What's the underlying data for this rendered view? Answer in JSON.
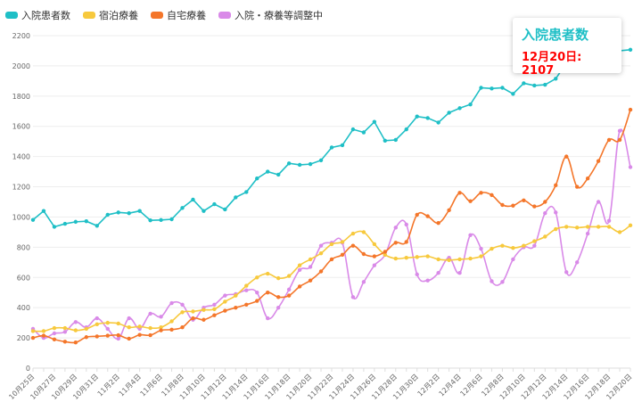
{
  "legend": [
    {
      "label": "入院患者数",
      "color": "#1fbfc6"
    },
    {
      "label": "宿泊療養",
      "color": "#f7c93d"
    },
    {
      "label": "自宅療養",
      "color": "#f4762a"
    },
    {
      "label": "入院・療養等調整中",
      "color": "#d98ae8"
    }
  ],
  "tooltip": {
    "title": "入院患者数",
    "date": "12月20日",
    "value": "2107",
    "text": "12月20日: 2107"
  },
  "chart_data": {
    "type": "line",
    "title": "",
    "xlabel": "",
    "ylabel": "",
    "ylim": [
      0,
      2200
    ],
    "yticks": [
      0,
      200,
      400,
      600,
      800,
      1000,
      1200,
      1400,
      1600,
      1800,
      2000,
      2200
    ],
    "grid": true,
    "legend_position": "top-left",
    "x": [
      "10月25日",
      "10月26日",
      "10月27日",
      "10月28日",
      "10月29日",
      "10月30日",
      "10月31日",
      "11月1日",
      "11月2日",
      "11月3日",
      "11月4日",
      "11月5日",
      "11月6日",
      "11月7日",
      "11月8日",
      "11月9日",
      "11月10日",
      "11月11日",
      "11月12日",
      "11月13日",
      "11月14日",
      "11月15日",
      "11月16日",
      "11月17日",
      "11月18日",
      "11月19日",
      "11月20日",
      "11月21日",
      "11月22日",
      "11月23日",
      "11月24日",
      "11月25日",
      "11月26日",
      "11月27日",
      "11月28日",
      "11月29日",
      "11月30日",
      "12月1日",
      "12月2日",
      "12月3日",
      "12月4日",
      "12月5日",
      "12月6日",
      "12月7日",
      "12月8日",
      "12月9日",
      "12月10日",
      "12月11日",
      "12月12日",
      "12月13日",
      "12月14日",
      "12月15日",
      "12月16日",
      "12月17日",
      "12月18日",
      "12月19日",
      "12月20日"
    ],
    "xtick_labels": [
      "10月25日",
      "10月27日",
      "10月29日",
      "10月31日",
      "11月2日",
      "11月4日",
      "11月6日",
      "11月8日",
      "11月10日",
      "11月12日",
      "11月14日",
      "11月16日",
      "11月18日",
      "11月20日",
      "11月22日",
      "11月24日",
      "11月26日",
      "11月28日",
      "11月30日",
      "12月2日",
      "12月4日",
      "12月6日",
      "12月8日",
      "12月10日",
      "12月12日",
      "12月14日",
      "12月16日",
      "12月18日",
      "12月20日"
    ],
    "series": [
      {
        "name": "入院患者数",
        "color": "#1fbfc6",
        "values": [
          981,
          1040,
          935,
          955,
          968,
          972,
          942,
          1015,
          1030,
          1025,
          1040,
          978,
          980,
          985,
          1060,
          1115,
          1040,
          1085,
          1050,
          1130,
          1165,
          1255,
          1300,
          1280,
          1355,
          1345,
          1350,
          1375,
          1460,
          1475,
          1580,
          1560,
          1630,
          1505,
          1510,
          1580,
          1665,
          1655,
          1625,
          1690,
          1720,
          1745,
          1855,
          1850,
          1855,
          1815,
          1885,
          1870,
          1875,
          1915,
          2020,
          2050,
          2070,
          2080,
          2095,
          2100,
          2107
        ]
      },
      {
        "name": "宿泊療養",
        "color": "#f7c93d",
        "values": [
          245,
          245,
          265,
          265,
          250,
          260,
          290,
          300,
          295,
          270,
          275,
          265,
          270,
          310,
          370,
          375,
          385,
          390,
          440,
          480,
          545,
          600,
          625,
          595,
          610,
          680,
          720,
          760,
          820,
          835,
          890,
          900,
          820,
          750,
          725,
          730,
          735,
          740,
          720,
          715,
          720,
          725,
          740,
          790,
          810,
          795,
          810,
          840,
          870,
          920,
          935,
          930,
          935,
          935,
          935,
          900,
          945
        ]
      },
      {
        "name": "自宅療養",
        "color": "#f4762a",
        "values": [
          200,
          215,
          190,
          175,
          170,
          205,
          210,
          215,
          218,
          195,
          220,
          218,
          250,
          255,
          270,
          330,
          320,
          350,
          380,
          400,
          420,
          445,
          500,
          470,
          480,
          540,
          580,
          640,
          720,
          750,
          810,
          755,
          740,
          770,
          830,
          835,
          1015,
          1005,
          960,
          1045,
          1160,
          1105,
          1160,
          1145,
          1080,
          1075,
          1110,
          1070,
          1100,
          1210,
          1400,
          1200,
          1255,
          1370,
          1510,
          1510,
          1710
        ]
      },
      {
        "name": "入院・療養等調整中",
        "color": "#d98ae8",
        "values": [
          260,
          200,
          230,
          240,
          305,
          270,
          330,
          260,
          195,
          330,
          260,
          360,
          340,
          430,
          420,
          320,
          400,
          420,
          480,
          490,
          515,
          500,
          330,
          400,
          520,
          650,
          670,
          810,
          830,
          830,
          470,
          570,
          680,
          750,
          930,
          950,
          620,
          580,
          630,
          730,
          630,
          880,
          790,
          575,
          570,
          720,
          800,
          810,
          1025,
          1030,
          635,
          700,
          890,
          1100,
          975,
          1570,
          1330
        ]
      }
    ]
  }
}
